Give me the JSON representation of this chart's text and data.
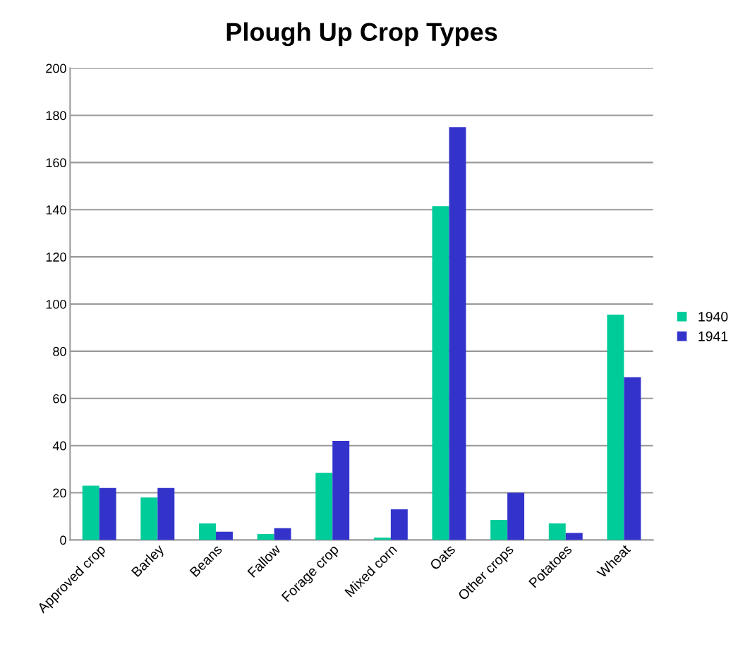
{
  "chart_data": {
    "type": "bar",
    "title": "Plough Up Crop Types",
    "categories": [
      "Approved crop",
      "Barley",
      "Beans",
      "Fallow",
      "Forage crop",
      "Mixed corn",
      "Oats",
      "Other crops",
      "Potatoes",
      "Wheat"
    ],
    "series": [
      {
        "name": "1940",
        "color": "#00cc99",
        "values": [
          23,
          18,
          7,
          2.5,
          28.5,
          1,
          141.5,
          8.5,
          7,
          95.5
        ]
      },
      {
        "name": "1941",
        "color": "#3333cc",
        "values": [
          22,
          22,
          3.5,
          5,
          42,
          13,
          175,
          20,
          3,
          69
        ]
      }
    ],
    "ylim": [
      0,
      200
    ],
    "yticks": [
      0,
      20,
      40,
      60,
      80,
      100,
      120,
      140,
      160,
      180,
      200
    ],
    "grid": "y",
    "legend": "right"
  }
}
